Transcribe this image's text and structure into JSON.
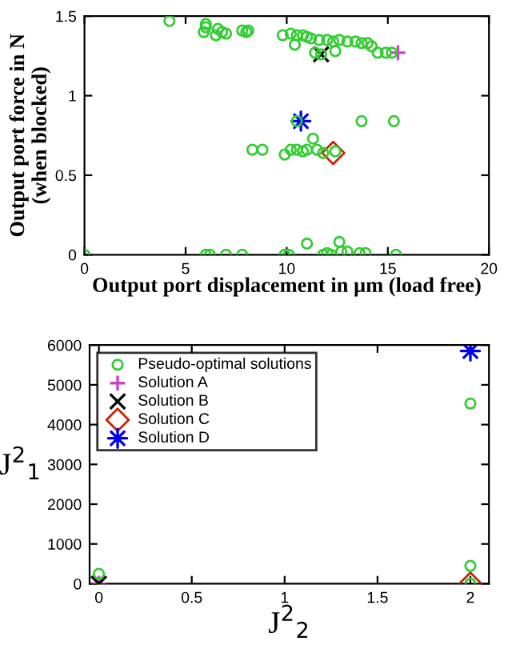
{
  "chart_data": [
    {
      "type": "scatter",
      "xlabel": "Output port displacement in µm (load free)",
      "ylabel": "Output port force in N\n(when blocked)",
      "xlim": [
        0,
        20
      ],
      "ylim": [
        0,
        1.5
      ],
      "xticks": [
        0,
        5,
        10,
        15,
        20
      ],
      "yticks": [
        0,
        0.5,
        1,
        1.5
      ],
      "legend": false,
      "series": [
        {
          "color": "#33cc33",
          "marker": "circle",
          "x": [
            4.2,
            6,
            6,
            5.9,
            6.6,
            6.8,
            6.5,
            7,
            7.8,
            8,
            8.1,
            9.8,
            10.2,
            10.5,
            10.8,
            11,
            10.4,
            11.2,
            11.6,
            12,
            12.3,
            12.6,
            13,
            13.4,
            13.7,
            14,
            14.2,
            14.5,
            14.9,
            11.4,
            11.7,
            12.4,
            15.2,
            10.5,
            13.7,
            15.3,
            8.3,
            8.8,
            9.9,
            10.2,
            10.5,
            10.8,
            11,
            11.3,
            11.5,
            11.8,
            12.4,
            0,
            6,
            6.2,
            7,
            7.8,
            9.9,
            10.1,
            11,
            11.8,
            12,
            12.2,
            12.6,
            12.7,
            13,
            13.6,
            13.9,
            15.4
          ],
          "values": [
            1.47,
            1.45,
            1.43,
            1.4,
            1.42,
            1.4,
            1.38,
            1.39,
            1.41,
            1.4,
            1.41,
            1.38,
            1.39,
            1.38,
            1.38,
            1.37,
            1.32,
            1.36,
            1.35,
            1.35,
            1.34,
            1.35,
            1.34,
            1.34,
            1.33,
            1.33,
            1.31,
            1.27,
            1.27,
            1.27,
            1.26,
            1.28,
            1.27,
            0.84,
            0.84,
            0.84,
            0.66,
            0.66,
            0.63,
            0.66,
            0.66,
            0.65,
            0.66,
            0.73,
            0.66,
            0.64,
            0.65,
            0,
            0,
            0,
            0,
            0,
            0,
            0,
            0.07,
            0,
            0.01,
            0,
            0.08,
            0.02,
            0.02,
            0.01,
            0.01,
            0
          ]
        },
        {
          "color": "#cc44cc",
          "marker": "plus",
          "x": [
            15.5
          ],
          "values": [
            1.27
          ]
        },
        {
          "color": "#000000",
          "marker": "cross",
          "x": [
            11.7
          ],
          "values": [
            1.26
          ]
        },
        {
          "color": "#cc2200",
          "marker": "diamond",
          "x": [
            12.3
          ],
          "values": [
            0.64
          ]
        },
        {
          "color": "#0000ee",
          "marker": "star",
          "x": [
            10.7
          ],
          "values": [
            0.84
          ]
        }
      ]
    },
    {
      "type": "scatter",
      "xlabel": "J$^{2}$$_{2}$",
      "ylabel": "J$^{2}$$_{1}$",
      "xlim": [
        -0.05,
        2.1
      ],
      "ylim": [
        0,
        6000
      ],
      "xticks": [
        0,
        0.5,
        1,
        1.5,
        2
      ],
      "yticks": [
        0,
        1000,
        2000,
        3000,
        4000,
        5000,
        6000
      ],
      "legend": "top left",
      "series": [
        {
          "name": "Pseudo-optimal solutions",
          "color": "#33cc33",
          "marker": "circle",
          "x": [
            0,
            2,
            2,
            2
          ],
          "values": [
            250,
            4530,
            450,
            0
          ]
        },
        {
          "name": "Solution A",
          "color": "#cc44cc",
          "marker": "plus",
          "x": [
            0
          ],
          "values": [
            0
          ]
        },
        {
          "name": "Solution B",
          "color": "#000000",
          "marker": "cross",
          "x": [
            0
          ],
          "values": [
            0
          ]
        },
        {
          "name": "Solution C",
          "color": "#cc2200",
          "marker": "diamond",
          "x": [
            2
          ],
          "values": [
            0
          ]
        },
        {
          "name": "Solution D",
          "color": "#0000ee",
          "marker": "star",
          "x": [
            2
          ],
          "values": [
            5850
          ]
        }
      ]
    }
  ]
}
